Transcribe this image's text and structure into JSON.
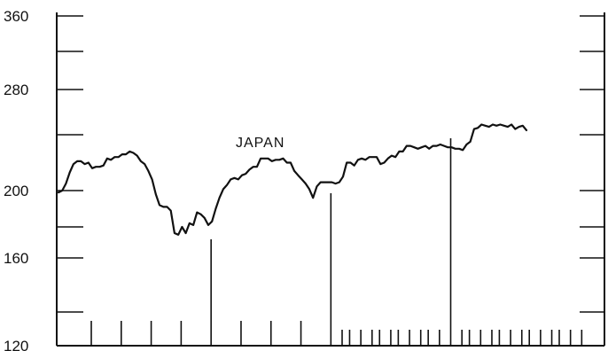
{
  "chart_data": {
    "type": "line",
    "title": "",
    "xlabel": "",
    "ylabel": "",
    "ylim": [
      120,
      360
    ],
    "y_tick_labels": [
      "360",
      "280",
      "200",
      "160",
      "120"
    ],
    "y_ticks": [
      360,
      280,
      200,
      160,
      120
    ],
    "y_minor_ticks": [
      320,
      240,
      180,
      140
    ],
    "grid": false,
    "series": [
      {
        "name": "JAPAN",
        "values": [
          199,
          200,
          205,
          213,
          219,
          221,
          221,
          219,
          220,
          216,
          217,
          217,
          218,
          223,
          222,
          224,
          224,
          226,
          226,
          228,
          227,
          225,
          221,
          219,
          214,
          208,
          198,
          192,
          191,
          191,
          189,
          176,
          175,
          180,
          176,
          182,
          181,
          188,
          187,
          185,
          181,
          183,
          190,
          196,
          201,
          204,
          208,
          209,
          208,
          211,
          212,
          215,
          217,
          217,
          223,
          223,
          223,
          221,
          222,
          222,
          223,
          220,
          220,
          214,
          211,
          208,
          205,
          201,
          196,
          203,
          206,
          206,
          206,
          206,
          205,
          206,
          210,
          220,
          220,
          218,
          222,
          223,
          222,
          224,
          224,
          224,
          219,
          220,
          223,
          225,
          224,
          228,
          228,
          232,
          232,
          231,
          230,
          231,
          232,
          230,
          232,
          232,
          233,
          232,
          231,
          231,
          230,
          230,
          229,
          233,
          235,
          245,
          246,
          249,
          248,
          247,
          249,
          248,
          249,
          248,
          247,
          249,
          245,
          247,
          248,
          244
        ],
        "color": "#111111"
      }
    ],
    "tick_marks": [
      {
        "index": 0,
        "height": 28
      },
      {
        "index": 8,
        "height": 28
      },
      {
        "index": 16,
        "height": 28
      },
      {
        "index": 24,
        "height": 28
      },
      {
        "index": 32,
        "height": 120
      },
      {
        "index": 40,
        "height": 28
      },
      {
        "index": 48,
        "height": 28
      },
      {
        "index": 56,
        "height": 28
      },
      {
        "index": 64,
        "height": 172
      },
      {
        "index": 67,
        "height": 18
      },
      {
        "index": 69,
        "height": 18
      },
      {
        "index": 72,
        "height": 18
      },
      {
        "index": 75,
        "height": 18
      },
      {
        "index": 77,
        "height": 18
      },
      {
        "index": 80,
        "height": 18
      },
      {
        "index": 82,
        "height": 18
      },
      {
        "index": 85,
        "height": 18
      },
      {
        "index": 88,
        "height": 18
      },
      {
        "index": 90,
        "height": 18
      },
      {
        "index": 93,
        "height": 18
      },
      {
        "index": 96,
        "height": 234
      },
      {
        "index": 99,
        "height": 18
      },
      {
        "index": 101,
        "height": 18
      },
      {
        "index": 104,
        "height": 18
      },
      {
        "index": 107,
        "height": 18
      },
      {
        "index": 109,
        "height": 18
      },
      {
        "index": 112,
        "height": 18
      },
      {
        "index": 115,
        "height": 18
      },
      {
        "index": 117,
        "height": 18
      },
      {
        "index": 120,
        "height": 18
      },
      {
        "index": 123,
        "height": 18
      },
      {
        "index": 125,
        "height": 18
      },
      {
        "index": 128,
        "height": 18
      },
      {
        "index": 131,
        "height": 18
      }
    ],
    "series_label_text": "JAPAN"
  }
}
